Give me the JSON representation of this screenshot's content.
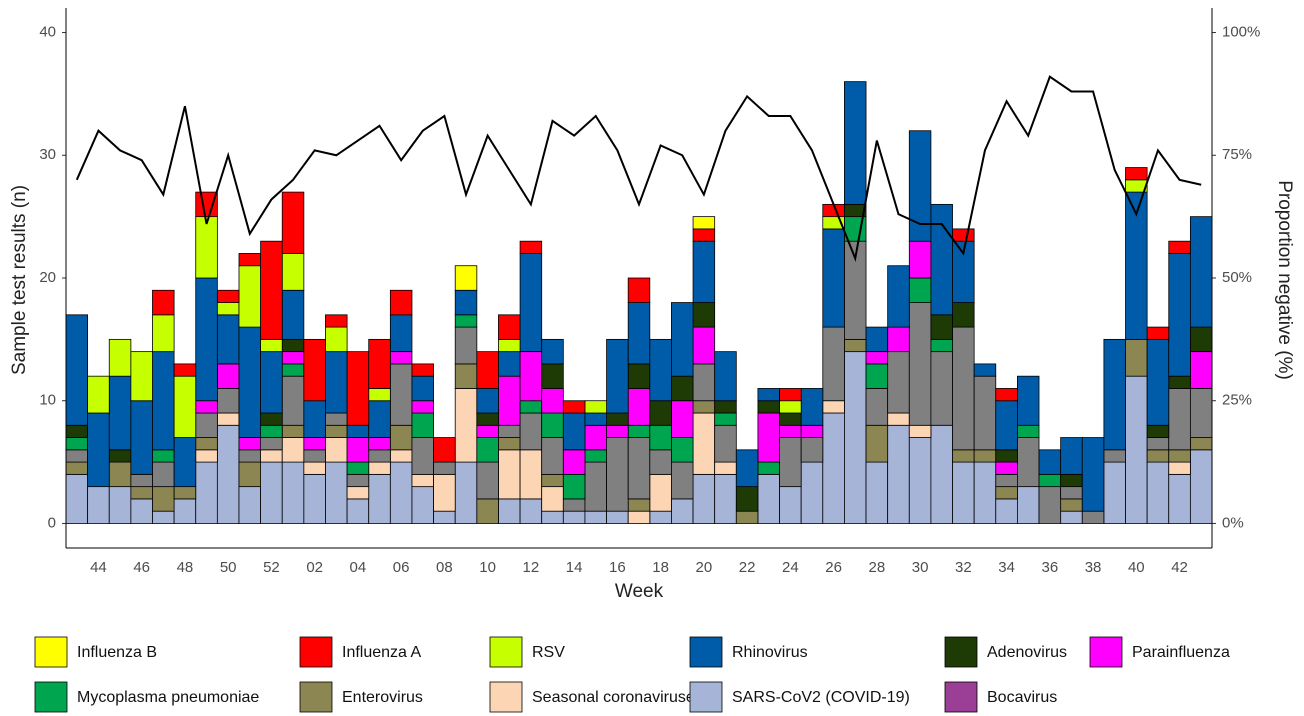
{
  "chart_data": {
    "type": "bar",
    "stacked": true,
    "y_label": "Sample test results (n)",
    "x_label": "Week",
    "y2_label": "Proportion negative (%)",
    "categories": [
      null,
      "44",
      null,
      "46",
      null,
      "48",
      null,
      "50",
      null,
      "52",
      null,
      "02",
      null,
      "04",
      null,
      "06",
      null,
      "08",
      null,
      "10",
      null,
      "12",
      null,
      "14",
      null,
      "16",
      null,
      "18",
      null,
      "20",
      null,
      "22",
      null,
      "24",
      null,
      "26",
      null,
      "28",
      null,
      "30",
      null,
      "32",
      null,
      "34",
      null,
      "36",
      null,
      "38",
      null,
      "40",
      null,
      "42",
      null
    ],
    "ylim": [
      -2,
      42
    ],
    "yticks": [
      0,
      10,
      20,
      30,
      40
    ],
    "y2lim": [
      -5,
      105
    ],
    "y2ticks": [
      {
        "value": 0,
        "label": "0%"
      },
      {
        "value": 25,
        "label": "25%"
      },
      {
        "value": 50,
        "label": "50%"
      },
      {
        "value": 75,
        "label": "75%"
      },
      {
        "value": 100,
        "label": "100%"
      }
    ],
    "series": [
      {
        "name": "Influenza B",
        "color": "#ffff00",
        "values": [
          0,
          0,
          0,
          0,
          0,
          0,
          0,
          0,
          0,
          0,
          0,
          0,
          0,
          0,
          0,
          0,
          0,
          0,
          2,
          0,
          0,
          0,
          0,
          0,
          0,
          0,
          0,
          0,
          0,
          1,
          0,
          0,
          0,
          0,
          0,
          0,
          0,
          0,
          0,
          0,
          0,
          0,
          0,
          0,
          0,
          0,
          0,
          0,
          0,
          0,
          0,
          0,
          0
        ]
      },
      {
        "name": "Influenza A",
        "color": "#ff0000",
        "values": [
          0,
          0,
          0,
          0,
          2,
          1,
          2,
          1,
          1,
          8,
          5,
          5,
          1,
          6,
          4,
          2,
          1,
          2,
          0,
          3,
          2,
          1,
          0,
          1,
          0,
          0,
          2,
          0,
          0,
          1,
          0,
          0,
          0,
          1,
          0,
          1,
          0,
          0,
          0,
          0,
          0,
          1,
          0,
          1,
          0,
          0,
          0,
          0,
          0,
          1,
          1,
          1,
          0
        ]
      },
      {
        "name": "RSV",
        "color": "#c6ff00",
        "values": [
          0,
          3,
          3,
          4,
          3,
          5,
          5,
          1,
          5,
          1,
          3,
          0,
          2,
          0,
          1,
          0,
          0,
          0,
          0,
          0,
          1,
          0,
          0,
          0,
          1,
          0,
          0,
          0,
          0,
          0,
          0,
          0,
          0,
          1,
          0,
          1,
          0,
          0,
          0,
          0,
          0,
          0,
          0,
          0,
          0,
          0,
          0,
          0,
          0,
          1,
          0,
          0,
          0
        ]
      },
      {
        "name": "Rhinovirus",
        "color": "#005ca8",
        "values": [
          9,
          6,
          6,
          6,
          8,
          4,
          10,
          4,
          9,
          5,
          4,
          3,
          5,
          1,
          3,
          3,
          2,
          0,
          2,
          2,
          2,
          8,
          2,
          3,
          1,
          6,
          5,
          5,
          6,
          5,
          4,
          3,
          1,
          0,
          3,
          8,
          10,
          2,
          5,
          9,
          9,
          5,
          1,
          4,
          4,
          2,
          3,
          6,
          9,
          12,
          7,
          10,
          9
        ]
      },
      {
        "name": "Adenovirus",
        "color": "#1e3a05",
        "values": [
          1,
          0,
          1,
          0,
          0,
          0,
          0,
          0,
          0,
          1,
          1,
          0,
          0,
          0,
          0,
          0,
          0,
          0,
          0,
          1,
          0,
          0,
          2,
          0,
          0,
          1,
          2,
          2,
          2,
          2,
          1,
          2,
          1,
          1,
          0,
          0,
          1,
          0,
          0,
          0,
          2,
          2,
          0,
          1,
          0,
          0,
          1,
          0,
          0,
          0,
          1,
          1,
          2
        ]
      },
      {
        "name": "Parainfluenza",
        "color": "#ff00ff",
        "values": [
          0,
          0,
          0,
          0,
          0,
          0,
          1,
          2,
          1,
          0,
          1,
          1,
          0,
          2,
          1,
          1,
          1,
          0,
          0,
          1,
          4,
          4,
          2,
          2,
          2,
          1,
          3,
          0,
          3,
          3,
          0,
          0,
          4,
          1,
          1,
          0,
          0,
          1,
          2,
          3,
          0,
          0,
          0,
          1,
          0,
          0,
          0,
          0,
          0,
          0,
          0,
          0,
          3
        ]
      },
      {
        "name": "Mycoplasma pneumoniae",
        "color": "#00a550",
        "values": [
          1,
          0,
          0,
          0,
          1,
          0,
          0,
          0,
          0,
          1,
          1,
          0,
          0,
          1,
          0,
          0,
          2,
          0,
          1,
          2,
          0,
          1,
          2,
          2,
          1,
          0,
          1,
          2,
          2,
          0,
          1,
          0,
          1,
          0,
          0,
          0,
          2,
          2,
          0,
          2,
          1,
          0,
          0,
          0,
          1,
          1,
          0,
          0,
          0,
          0,
          0,
          0,
          0
        ]
      },
      {
        "name": null,
        "color": "#808080",
        "values": [
          1,
          0,
          0,
          1,
          2,
          0,
          2,
          2,
          1,
          1,
          4,
          1,
          1,
          1,
          1,
          5,
          3,
          1,
          3,
          3,
          1,
          3,
          3,
          1,
          4,
          6,
          5,
          2,
          3,
          3,
          3,
          0,
          0,
          4,
          2,
          6,
          8,
          3,
          5,
          10,
          6,
          10,
          6,
          1,
          4,
          3,
          1,
          1,
          1,
          0,
          1,
          5,
          4
        ]
      },
      {
        "name": "Enterovirus",
        "color": "#8c8652",
        "values": [
          1,
          0,
          2,
          1,
          2,
          1,
          1,
          0,
          2,
          0,
          1,
          0,
          1,
          0,
          0,
          2,
          0,
          0,
          2,
          2,
          1,
          0,
          1,
          0,
          0,
          0,
          1,
          0,
          0,
          1,
          0,
          1,
          0,
          0,
          0,
          0,
          1,
          3,
          0,
          0,
          0,
          1,
          1,
          1,
          0,
          0,
          1,
          0,
          0,
          3,
          1,
          1,
          1
        ]
      },
      {
        "name": "Seasonal coronaviruses",
        "color": "#fcd5b4",
        "values": [
          0,
          0,
          0,
          0,
          0,
          0,
          1,
          1,
          0,
          1,
          2,
          1,
          2,
          1,
          1,
          1,
          1,
          3,
          6,
          0,
          4,
          4,
          2,
          0,
          0,
          0,
          1,
          3,
          0,
          5,
          1,
          0,
          0,
          0,
          0,
          1,
          0,
          0,
          1,
          1,
          0,
          0,
          0,
          0,
          0,
          0,
          0,
          0,
          0,
          0,
          0,
          1,
          0
        ]
      },
      {
        "name": "SARS-CoV2 (COVID-19)",
        "color": "#a6b4d8",
        "values": [
          4,
          3,
          3,
          2,
          1,
          2,
          5,
          8,
          3,
          5,
          5,
          4,
          5,
          2,
          4,
          5,
          3,
          1,
          5,
          0,
          2,
          2,
          1,
          1,
          1,
          1,
          0,
          1,
          2,
          4,
          4,
          0,
          4,
          3,
          5,
          9,
          14,
          5,
          8,
          7,
          8,
          5,
          5,
          2,
          3,
          0,
          1,
          0,
          5,
          12,
          5,
          4,
          6
        ]
      },
      {
        "name": "Bocavirus",
        "color": "#9b3f96",
        "values": [
          0,
          0,
          0,
          0,
          0,
          0,
          0,
          0,
          0,
          0,
          0,
          0,
          0,
          0,
          0,
          0,
          0,
          0,
          0,
          0,
          0,
          0,
          0,
          0,
          0,
          0,
          0,
          0,
          0,
          0,
          0,
          0,
          0,
          0,
          0,
          0,
          0,
          0,
          0,
          0,
          0,
          0,
          0,
          0,
          0,
          0,
          0,
          0,
          0,
          0,
          0,
          0,
          0
        ]
      },
      {
        "type": "line",
        "axis": "y2",
        "color": "#000000",
        "values": [
          70,
          80,
          76,
          74,
          67,
          85,
          61,
          75,
          59,
          66,
          70,
          76,
          75,
          78,
          81,
          74,
          80,
          83,
          67,
          79,
          72,
          65,
          82,
          79,
          83,
          76,
          65,
          77,
          75,
          67,
          80,
          87,
          83,
          83,
          76,
          65,
          54,
          78,
          63,
          61,
          61,
          55,
          76,
          86,
          79,
          91,
          88,
          88,
          72,
          63,
          76,
          70,
          69
        ]
      }
    ]
  }
}
